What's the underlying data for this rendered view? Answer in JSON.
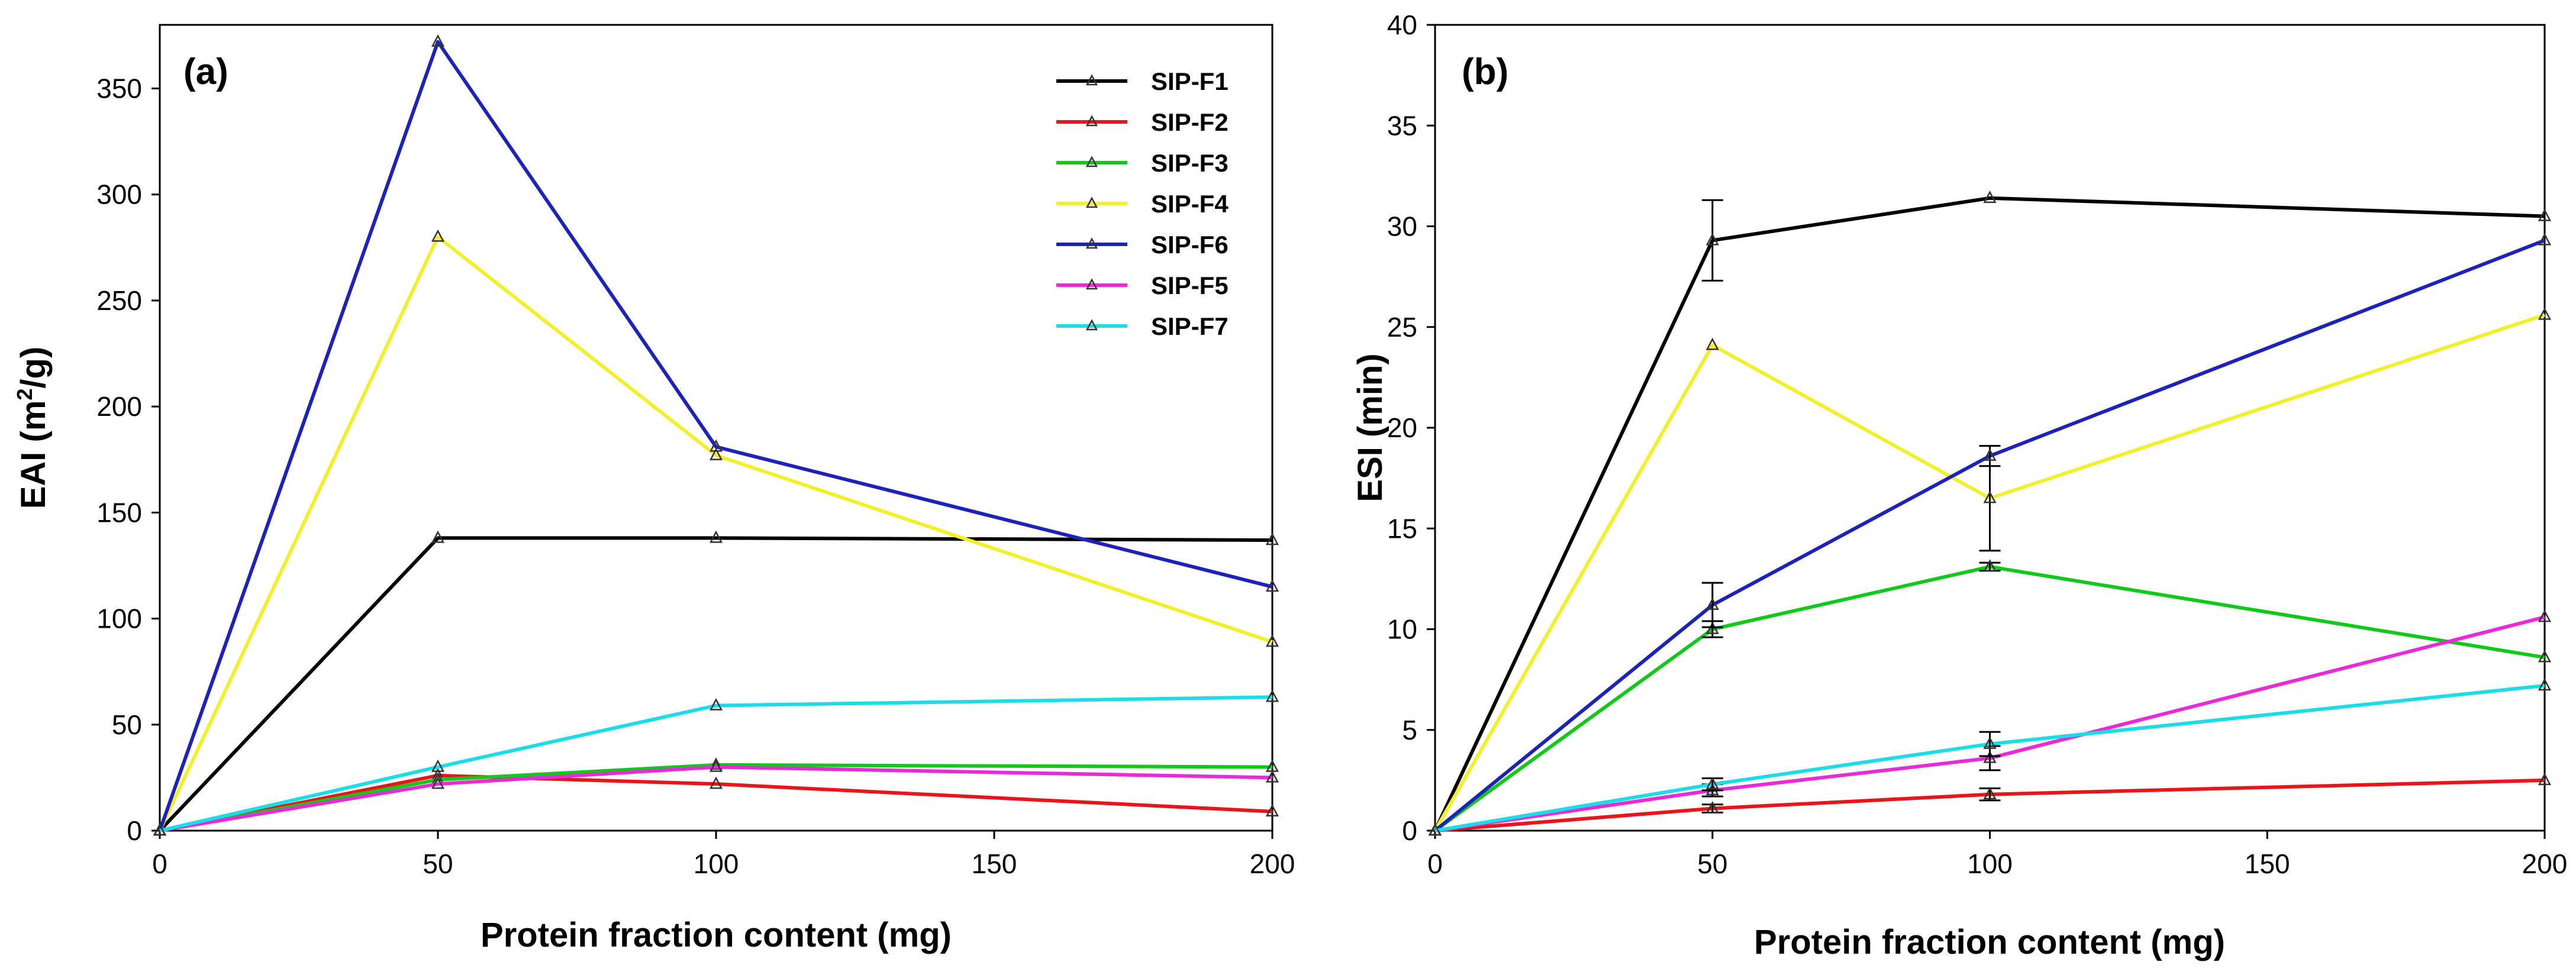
{
  "chart_data": [
    {
      "type": "line",
      "panel_label": "(a)",
      "xlabel": "Protein fraction content (mg)",
      "ylabel_main": "EAI (m",
      "ylabel_sup": "2",
      "ylabel_tail": "/g)",
      "x_ticks": [
        "0",
        "50",
        "100",
        "150",
        "200"
      ],
      "y_ticks": [
        "0",
        "50",
        "100",
        "150",
        "200",
        "250",
        "300",
        "350"
      ],
      "xlim": [
        0,
        200
      ],
      "ylim": [
        0,
        380
      ],
      "x": [
        0,
        50,
        100,
        200
      ],
      "legend_position": "top-right",
      "series": [
        {
          "name": "SIP-F1",
          "color": "#000000",
          "values": [
            0,
            138,
            138,
            137
          ]
        },
        {
          "name": "SIP-F2",
          "color": "#e8151b",
          "values": [
            0,
            26,
            22,
            9
          ]
        },
        {
          "name": "SIP-F3",
          "color": "#12c81b",
          "values": [
            0,
            24,
            31,
            30
          ]
        },
        {
          "name": "SIP-F4",
          "color": "#f2f02a",
          "values": [
            0,
            280,
            177,
            89
          ]
        },
        {
          "name": "SIP-F6",
          "color": "#1d22b8",
          "values": [
            0,
            372,
            181,
            115
          ]
        },
        {
          "name": "SIP-F5",
          "color": "#e92ad8",
          "values": [
            0,
            22,
            30,
            25
          ]
        },
        {
          "name": "SIP-F7",
          "color": "#1bdde8",
          "values": [
            0,
            30,
            59,
            63
          ]
        }
      ]
    },
    {
      "type": "line",
      "panel_label": "(b)",
      "xlabel": "Protein fraction content (mg)",
      "ylabel": "ESI (min)",
      "x_ticks": [
        "0",
        "50",
        "100",
        "150",
        "200"
      ],
      "y_ticks": [
        "0",
        "5",
        "10",
        "15",
        "20",
        "25",
        "30",
        "35",
        "40"
      ],
      "xlim": [
        0,
        200
      ],
      "ylim": [
        0,
        40
      ],
      "x": [
        0,
        50,
        100,
        200
      ],
      "series": [
        {
          "name": "SIP-F1",
          "color": "#000000",
          "values": [
            0,
            29.3,
            31.4,
            30.5
          ],
          "errors": [
            0,
            2.0,
            0,
            0
          ]
        },
        {
          "name": "SIP-F2",
          "color": "#e8151b",
          "values": [
            0,
            1.1,
            1.8,
            2.5
          ],
          "errors": [
            0,
            0.2,
            0.3,
            0
          ]
        },
        {
          "name": "SIP-F3",
          "color": "#12c81b",
          "values": [
            0,
            10.0,
            13.1,
            8.6
          ],
          "errors": [
            0,
            0.4,
            0.2,
            0
          ]
        },
        {
          "name": "SIP-F4",
          "color": "#f2f02a",
          "values": [
            0,
            24.1,
            16.5,
            25.6
          ],
          "errors": [
            0,
            0,
            2.6,
            0
          ]
        },
        {
          "name": "SIP-F6",
          "color": "#1d22b8",
          "values": [
            0,
            11.2,
            18.6,
            29.3
          ],
          "errors": [
            0,
            1.1,
            0.5,
            0
          ]
        },
        {
          "name": "SIP-F5",
          "color": "#e92ad8",
          "values": [
            0,
            2.0,
            3.6,
            10.6
          ],
          "errors": [
            0,
            0.3,
            0.6,
            0
          ]
        },
        {
          "name": "SIP-F7",
          "color": "#1bdde8",
          "values": [
            0,
            2.3,
            4.3,
            7.2
          ],
          "errors": [
            0,
            0.3,
            0.6,
            0
          ]
        }
      ]
    }
  ]
}
